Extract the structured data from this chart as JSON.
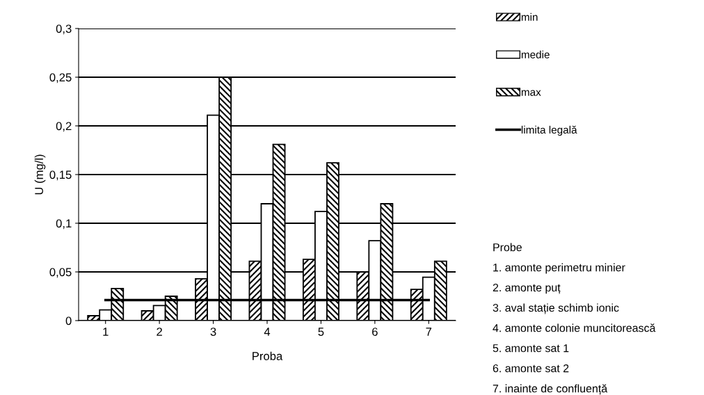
{
  "chart_data": {
    "type": "bar",
    "xlabel": "Proba",
    "ylabel": "U (mg/l)",
    "categories": [
      "1",
      "2",
      "3",
      "4",
      "5",
      "6",
      "7"
    ],
    "series": [
      {
        "name": "min",
        "color": "#000000",
        "values": [
          0.005,
          0.01,
          0.043,
          0.061,
          0.063,
          0.05,
          0.032
        ]
      },
      {
        "name": "medie",
        "color": "#ffffff",
        "values": [
          0.011,
          0.0155,
          0.211,
          0.12,
          0.112,
          0.082,
          0.0445
        ]
      },
      {
        "name": "max",
        "color": "#000000",
        "values": [
          0.033,
          0.025,
          0.25,
          0.181,
          0.162,
          0.12,
          0.061
        ]
      }
    ],
    "ref_lines": [
      {
        "axis": "y",
        "value": 0.021,
        "label": "limita legală",
        "color": "#000000"
      }
    ],
    "ylim": [
      0,
      0.3
    ],
    "yticks": [
      {
        "value": 0,
        "label": "0"
      },
      {
        "value": 0.05,
        "label": "0,05"
      },
      {
        "value": 0.1,
        "label": "0,1"
      },
      {
        "value": 0.15,
        "label": "0,15"
      },
      {
        "value": 0.2,
        "label": "0,2"
      },
      {
        "value": 0.25,
        "label": "0,25"
      },
      {
        "value": 0.3,
        "label": "0,3"
      }
    ],
    "grid": "y",
    "legend": "top right",
    "annotations": [
      "Probe",
      "1. amonte perimetru minier",
      "2. amonte puț",
      "3. aval stație schimb ionic",
      "4. amonte colonie muncitorească",
      "5. amonte sat 1",
      "6. amonte sat 2",
      "7. inainte de confluență"
    ]
  }
}
